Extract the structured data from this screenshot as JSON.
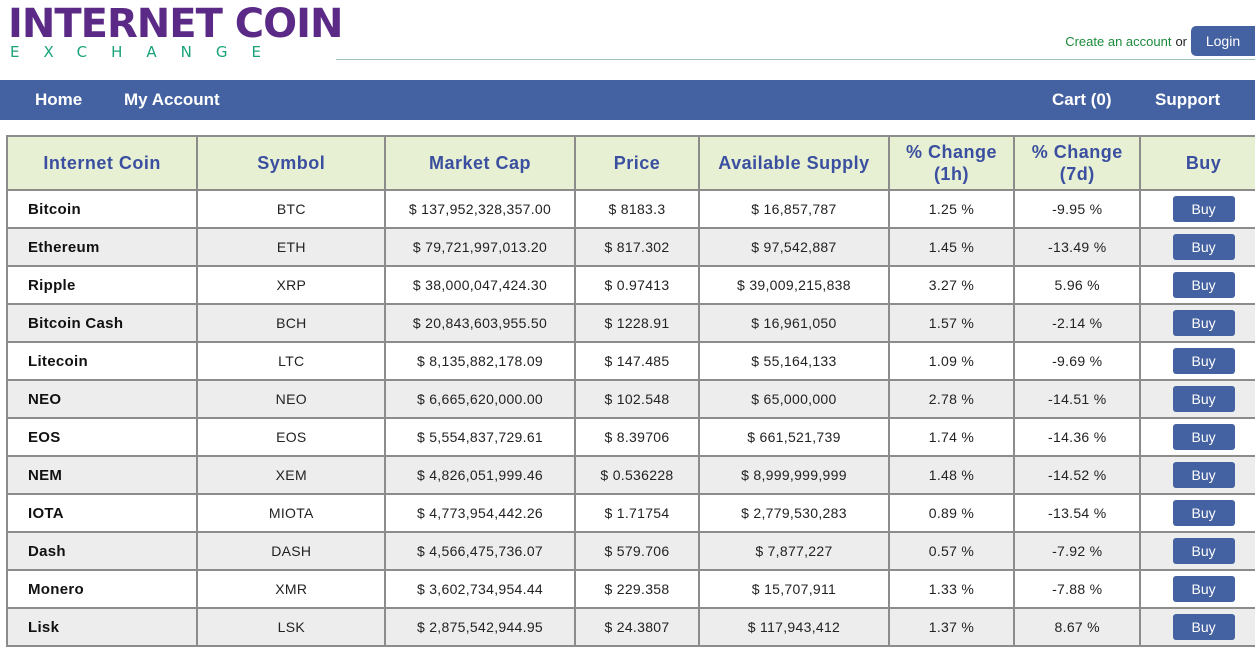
{
  "logo": {
    "main": "INTERNET COIN",
    "sub": "EXCHANGE"
  },
  "account": {
    "create_link": "Create an account",
    "or_text": "or",
    "login": "Login"
  },
  "nav": {
    "home": "Home",
    "my_account": "My Account",
    "cart": "Cart (0)",
    "support": "Support"
  },
  "table": {
    "headers": {
      "coin": "Internet Coin",
      "symbol": "Symbol",
      "market_cap": "Market Cap",
      "price": "Price",
      "supply": "Available Supply",
      "change_1h_line1": "% Change",
      "change_1h_line2": "(1h)",
      "change_7d_line1": "% Change",
      "change_7d_line2": "(7d)",
      "buy": "Buy"
    },
    "buy_label": "Buy",
    "rows": [
      {
        "name": "Bitcoin",
        "symbol": "BTC",
        "market_cap": "$ 137,952,328,357.00",
        "price": "$ 8183.3",
        "supply": "$ 16,857,787",
        "change_1h": "1.25 %",
        "change_7d": "-9.95 %"
      },
      {
        "name": "Ethereum",
        "symbol": "ETH",
        "market_cap": "$ 79,721,997,013.20",
        "price": "$ 817.302",
        "supply": "$ 97,542,887",
        "change_1h": "1.45 %",
        "change_7d": "-13.49 %"
      },
      {
        "name": "Ripple",
        "symbol": "XRP",
        "market_cap": "$ 38,000,047,424.30",
        "price": "$ 0.97413",
        "supply": "$ 39,009,215,838",
        "change_1h": "3.27 %",
        "change_7d": "5.96 %"
      },
      {
        "name": "Bitcoin Cash",
        "symbol": "BCH",
        "market_cap": "$ 20,843,603,955.50",
        "price": "$ 1228.91",
        "supply": "$ 16,961,050",
        "change_1h": "1.57 %",
        "change_7d": "-2.14 %"
      },
      {
        "name": "Litecoin",
        "symbol": "LTC",
        "market_cap": "$ 8,135,882,178.09",
        "price": "$ 147.485",
        "supply": "$ 55,164,133",
        "change_1h": "1.09 %",
        "change_7d": "-9.69 %"
      },
      {
        "name": "NEO",
        "symbol": "NEO",
        "market_cap": "$ 6,665,620,000.00",
        "price": "$ 102.548",
        "supply": "$ 65,000,000",
        "change_1h": "2.78 %",
        "change_7d": "-14.51 %"
      },
      {
        "name": "EOS",
        "symbol": "EOS",
        "market_cap": "$ 5,554,837,729.61",
        "price": "$ 8.39706",
        "supply": "$ 661,521,739",
        "change_1h": "1.74 %",
        "change_7d": "-14.36 %"
      },
      {
        "name": "NEM",
        "symbol": "XEM",
        "market_cap": "$ 4,826,051,999.46",
        "price": "$ 0.536228",
        "supply": "$ 8,999,999,999",
        "change_1h": "1.48 %",
        "change_7d": "-14.52 %"
      },
      {
        "name": "IOTA",
        "symbol": "MIOTA",
        "market_cap": "$ 4,773,954,442.26",
        "price": "$ 1.71754",
        "supply": "$ 2,779,530,283",
        "change_1h": "0.89 %",
        "change_7d": "-13.54 %"
      },
      {
        "name": "Dash",
        "symbol": "DASH",
        "market_cap": "$ 4,566,475,736.07",
        "price": "$ 579.706",
        "supply": "$ 7,877,227",
        "change_1h": "0.57 %",
        "change_7d": "-7.92 %"
      },
      {
        "name": "Monero",
        "symbol": "XMR",
        "market_cap": "$ 3,602,734,954.44",
        "price": "$ 229.358",
        "supply": "$ 15,707,911",
        "change_1h": "1.33 %",
        "change_7d": "-7.88 %"
      },
      {
        "name": "Lisk",
        "symbol": "LSK",
        "market_cap": "$ 2,875,542,944.95",
        "price": "$ 24.3807",
        "supply": "$ 117,943,412",
        "change_1h": "1.37 %",
        "change_7d": "8.67 %"
      }
    ]
  }
}
